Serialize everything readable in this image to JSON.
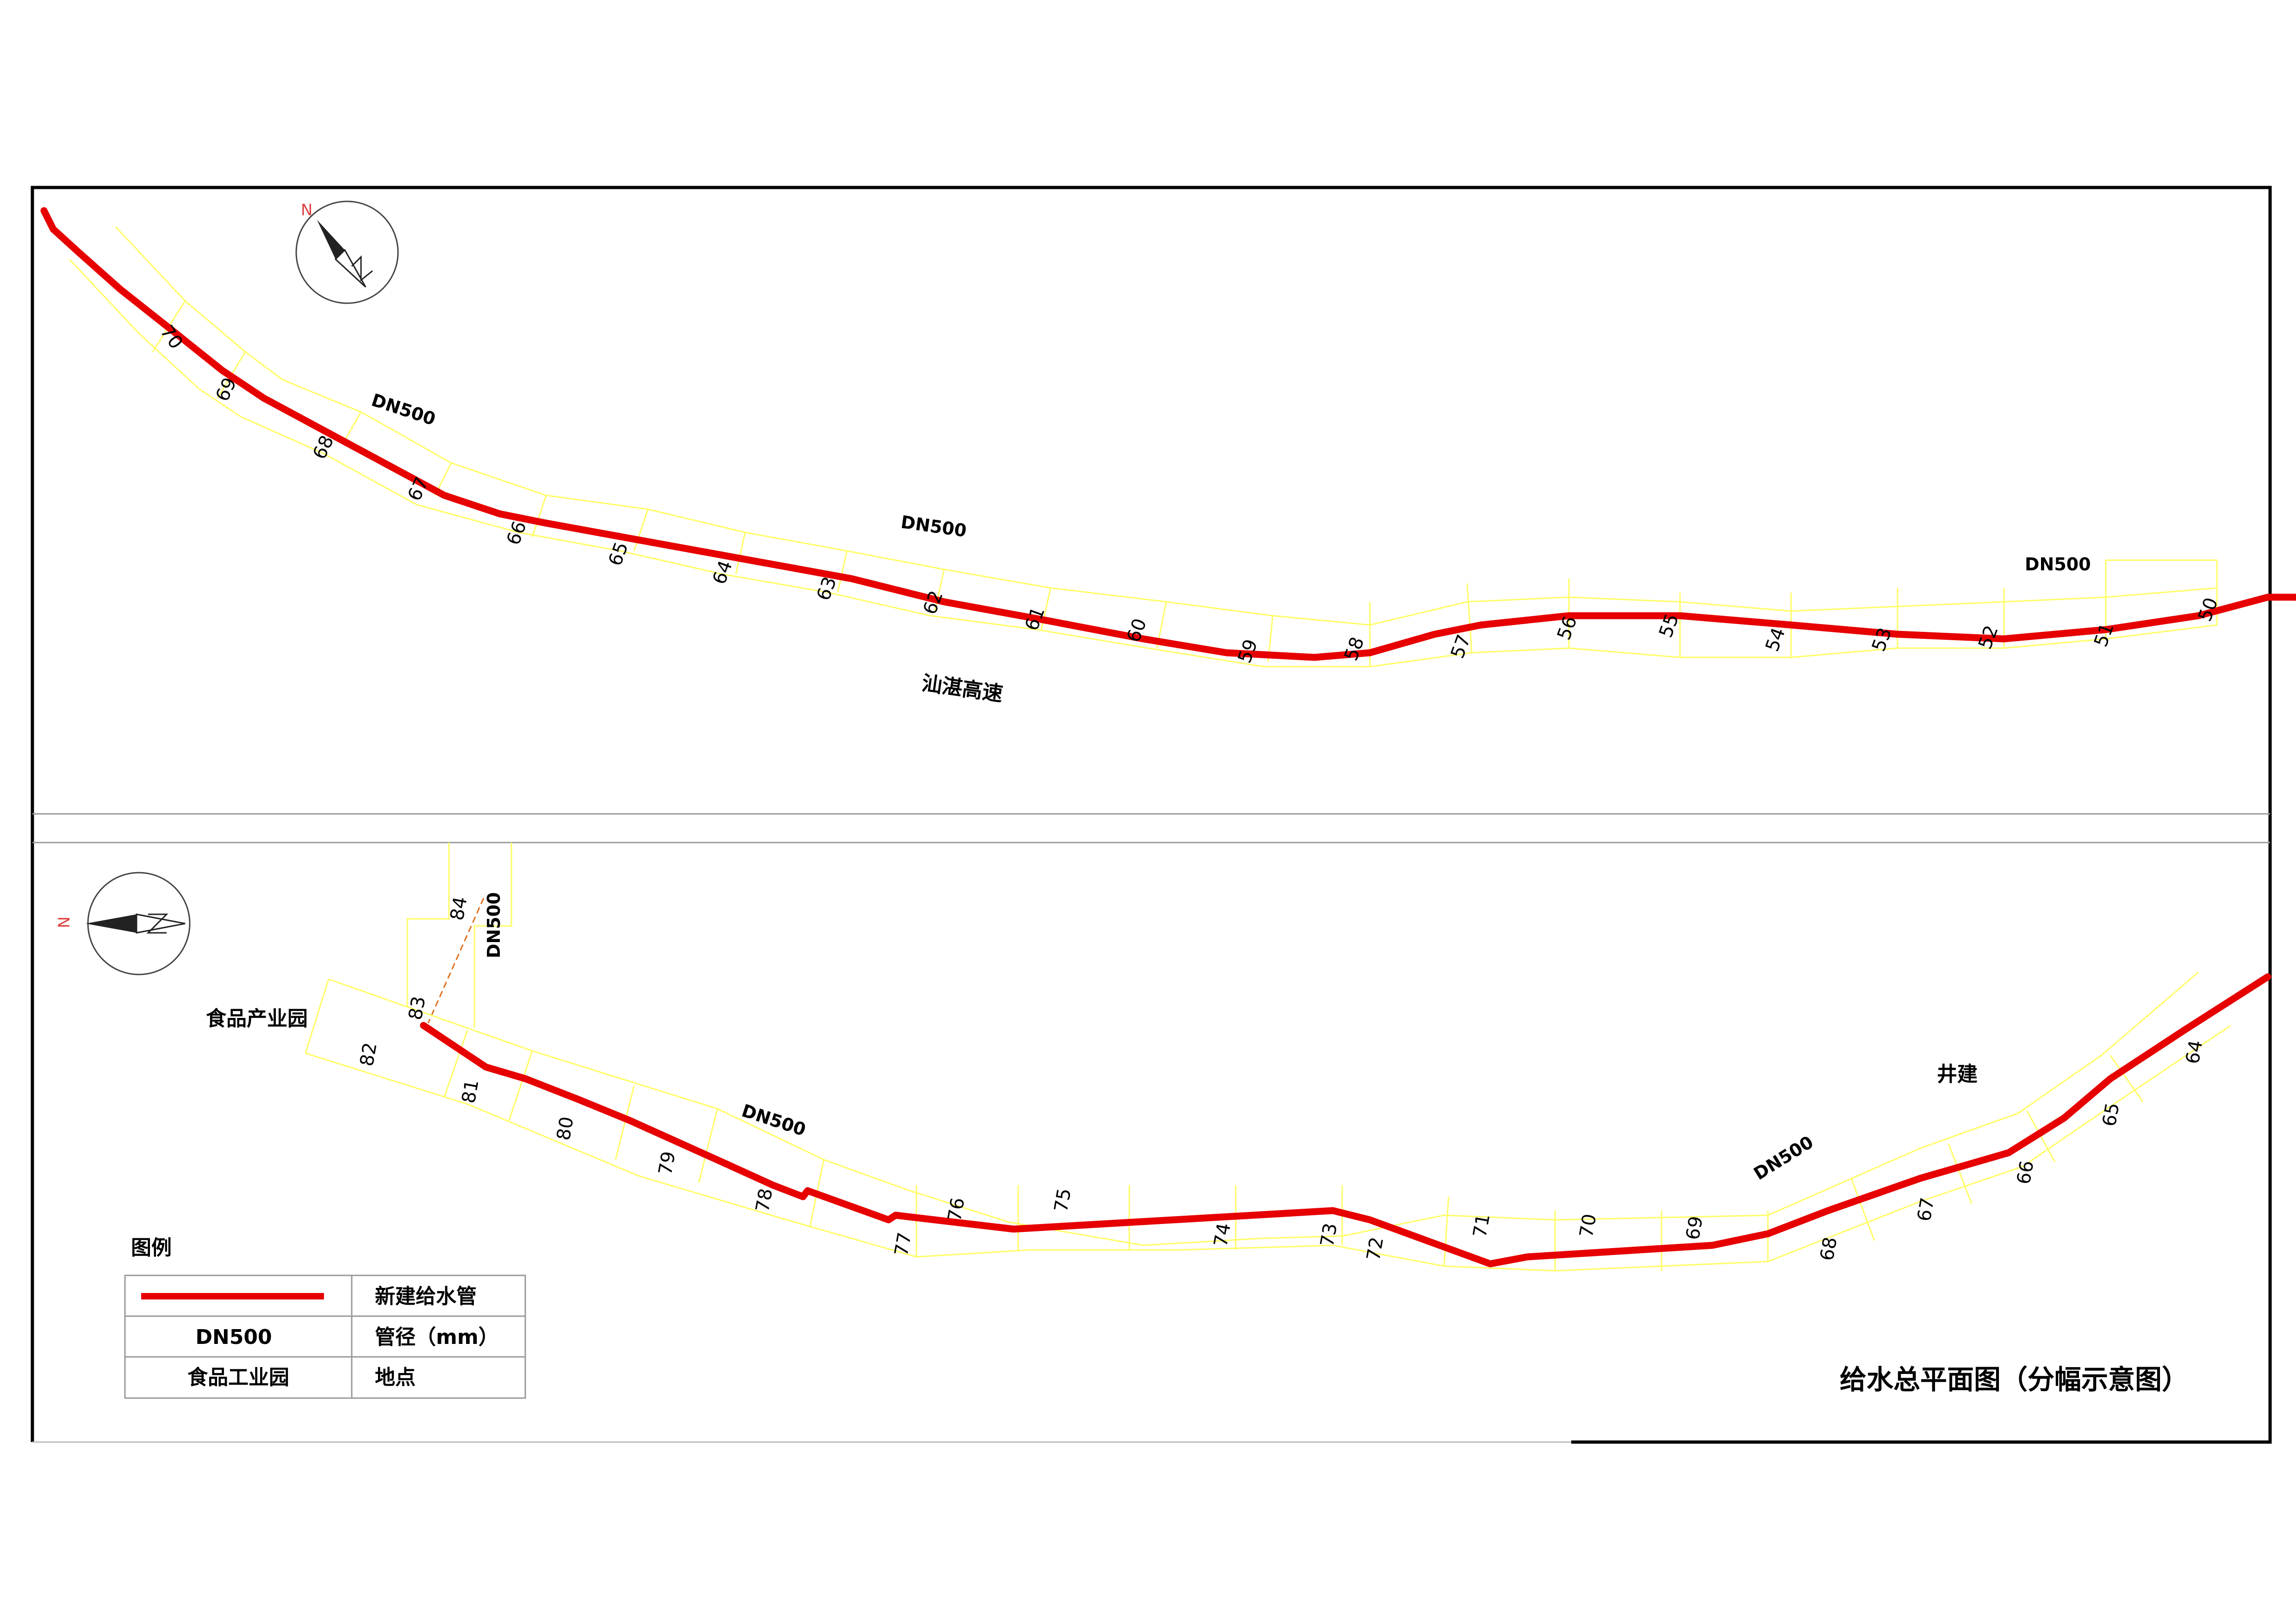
{
  "title": "给水总平面图（分幅示意图）",
  "colors": {
    "pipe": "#e60000",
    "sheet_outline": "#ffff66",
    "frame": "#000000",
    "road_dash": "#e07020"
  },
  "top_panel": {
    "pipe_label_1": "DN500",
    "pipe_label_2": "DN500",
    "pipe_label_3": "DN500",
    "road_name": "汕湛高速",
    "sheets": [
      "70",
      "69",
      "68",
      "67",
      "66",
      "65",
      "64",
      "63",
      "62",
      "61",
      "60",
      "59",
      "58",
      "57",
      "56",
      "55",
      "54",
      "53",
      "52",
      "51",
      "50"
    ]
  },
  "bottom_panel": {
    "pipe_label_1": "DN500",
    "pipe_label_2": "DN500",
    "pipe_label_3": "DN500",
    "place_food_park": "食品产业园",
    "place_jingjian": "井建",
    "sheets": [
      "84",
      "83",
      "82",
      "81",
      "80",
      "79",
      "78",
      "77",
      "76",
      "75",
      "74",
      "73",
      "72",
      "71",
      "70",
      "69",
      "68",
      "67",
      "66",
      "65",
      "64"
    ]
  },
  "compass": {
    "north_letter": "N"
  },
  "legend": {
    "heading": "图例",
    "rows": [
      {
        "symbol_text": "",
        "desc": "新建给水管"
      },
      {
        "symbol_text": "DN500",
        "desc": "管径（mm）"
      },
      {
        "symbol_text": "食品工业园",
        "desc": "地点"
      }
    ]
  }
}
